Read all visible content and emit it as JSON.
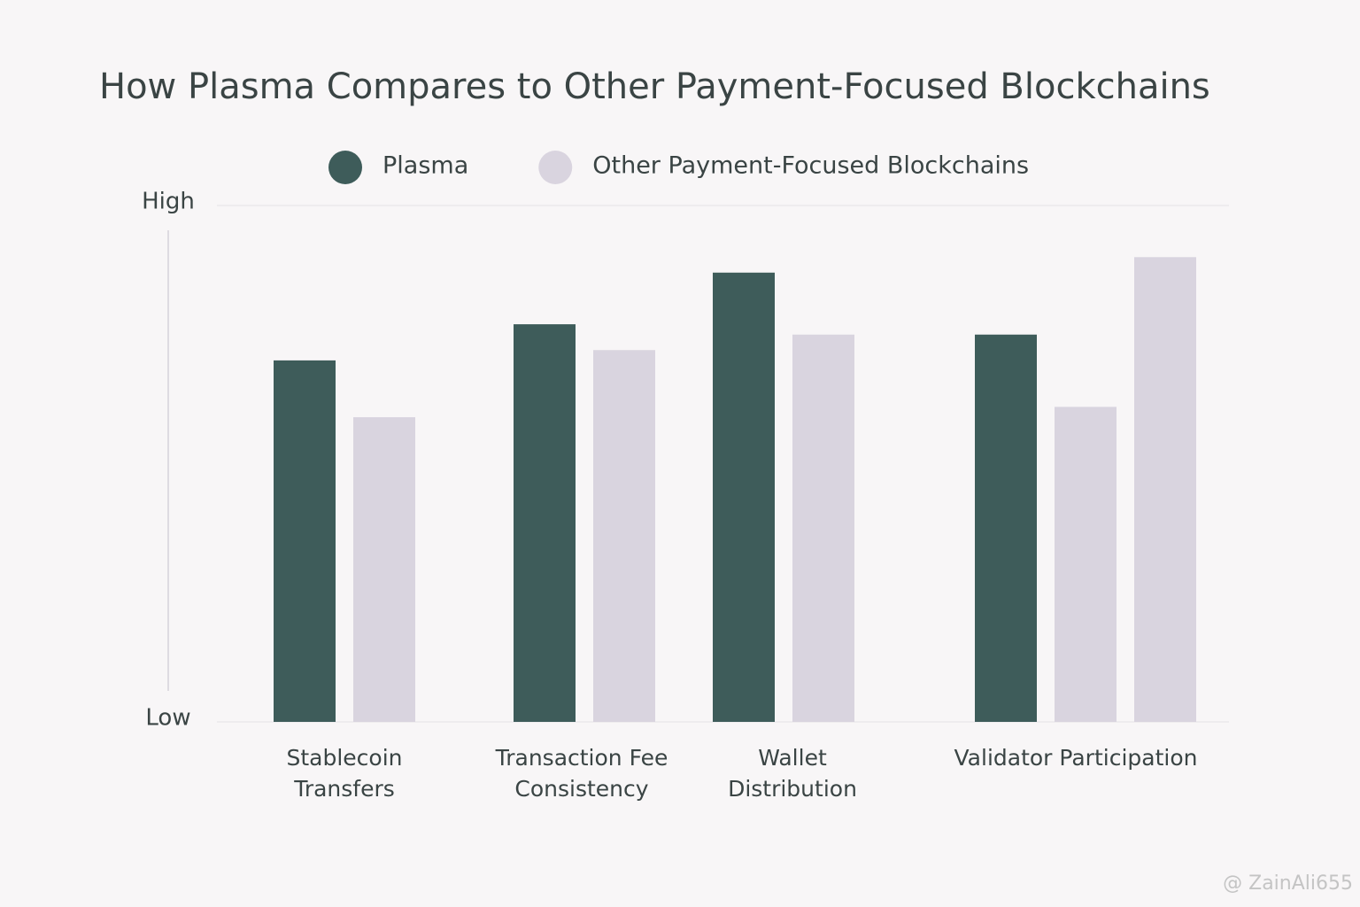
{
  "chart_data": {
    "type": "bar",
    "title": "How Plasma Compares to Other Payment-Focused Blockchains",
    "categories": [
      "Stablecoin Transfers",
      "Transaction Fee Consistency",
      "Wallet Distribution",
      "Validator Participation"
    ],
    "series": [
      {
        "name": "Plasma",
        "color": "#3e5c5a",
        "values": [
          70,
          77,
          87,
          75
        ]
      },
      {
        "name": "Other Payment-Focused Blockchains",
        "color": "#d9d4df",
        "values": [
          59,
          72,
          75,
          61
        ]
      },
      {
        "color": "#d9d4df",
        "values": [
          null,
          null,
          null,
          90
        ]
      }
    ],
    "ylim": [
      0,
      100
    ],
    "yticks": [
      {
        "value": 0,
        "label": "Low"
      },
      {
        "value": 100,
        "label": "High"
      }
    ],
    "grid": true,
    "watermark": "@ ZainAli655"
  }
}
